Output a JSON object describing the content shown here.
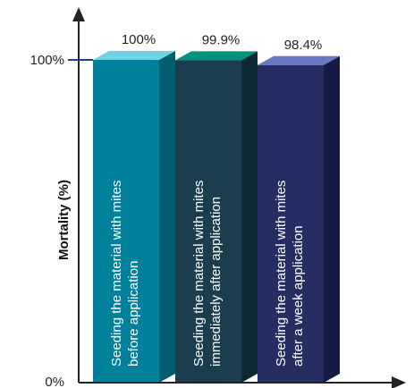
{
  "chart_data": {
    "type": "bar",
    "categories": [
      [
        "Seeding the material with mites",
        "before application"
      ],
      [
        "Seeding the material with mites",
        "immediately after application"
      ],
      [
        "Seeding the material with mites",
        "after a week application"
      ]
    ],
    "values": [
      100,
      99.9,
      98.4
    ],
    "value_labels": [
      "100%",
      "99.9%",
      "98.4%"
    ],
    "ylabel": "Mortality (%)",
    "xlabel": "",
    "yticks": [
      "0%",
      "100%"
    ],
    "ylim": [
      0,
      100
    ],
    "grid": false,
    "colors": {
      "bars": [
        {
          "front": "#00819b",
          "side": "#005e72",
          "top": "#6fd2e8"
        },
        {
          "front": "#1c3d4d",
          "side": "#0e2832",
          "top": "#00917f"
        },
        {
          "front": "#242e63",
          "side": "#141a42",
          "top": "#6777c4"
        }
      ],
      "axis": "#222222",
      "tick_accent": "#1b3f8b"
    }
  }
}
